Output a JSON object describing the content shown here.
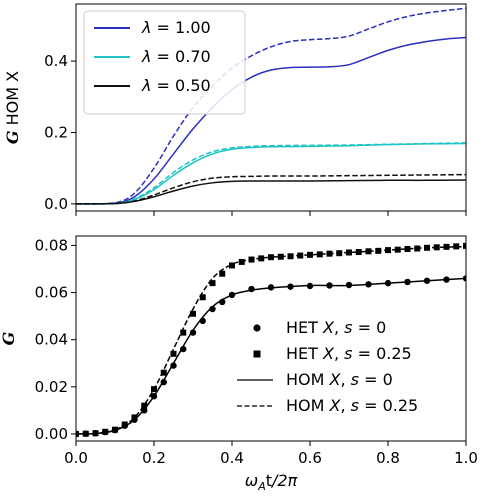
{
  "chart_data": [
    {
      "type": "line",
      "ylabel": "G HOM X",
      "ylim": [
        -0.02,
        0.56
      ],
      "xlim": [
        0.0,
        1.0
      ],
      "yticks": [
        0.0,
        0.2,
        0.4
      ],
      "ytick_labels": [
        "0.0",
        "0.2",
        "0.4"
      ],
      "show_x_tick_labels": false,
      "legend_position": "top-left",
      "legend": [
        {
          "label": "λ = 1.00",
          "color": "#2a2fbf"
        },
        {
          "label": "λ = 0.70",
          "color": "#1ec4c4"
        },
        {
          "label": "λ = 0.50",
          "color": "#111111"
        }
      ],
      "series": [
        {
          "lambda": "1.00",
          "style": "solid",
          "color": "#2a2fbf",
          "x": [
            0.0,
            0.1,
            0.15,
            0.2,
            0.25,
            0.3,
            0.35,
            0.4,
            0.45,
            0.5,
            0.55,
            0.6,
            0.65,
            0.7,
            0.75,
            0.8,
            0.85,
            0.9,
            0.95,
            1.0
          ],
          "y": [
            0.0,
            0.002,
            0.02,
            0.07,
            0.14,
            0.21,
            0.27,
            0.32,
            0.355,
            0.375,
            0.382,
            0.383,
            0.384,
            0.39,
            0.41,
            0.43,
            0.445,
            0.455,
            0.462,
            0.466
          ]
        },
        {
          "lambda": "1.00",
          "style": "dashed",
          "color": "#2a2fbf",
          "x": [
            0.0,
            0.1,
            0.15,
            0.2,
            0.25,
            0.3,
            0.35,
            0.4,
            0.45,
            0.5,
            0.55,
            0.6,
            0.65,
            0.7,
            0.75,
            0.8,
            0.85,
            0.9,
            0.95,
            1.0
          ],
          "y": [
            0.0,
            0.003,
            0.03,
            0.1,
            0.19,
            0.27,
            0.33,
            0.38,
            0.415,
            0.44,
            0.455,
            0.46,
            0.463,
            0.47,
            0.49,
            0.51,
            0.525,
            0.535,
            0.542,
            0.548
          ]
        },
        {
          "lambda": "0.70",
          "style": "solid",
          "color": "#1ec4c4",
          "x": [
            0.0,
            0.1,
            0.15,
            0.2,
            0.25,
            0.3,
            0.35,
            0.4,
            0.45,
            0.5,
            0.6,
            0.7,
            0.8,
            0.9,
            1.0
          ],
          "y": [
            0.0,
            0.001,
            0.012,
            0.04,
            0.08,
            0.115,
            0.14,
            0.153,
            0.158,
            0.16,
            0.161,
            0.163,
            0.166,
            0.168,
            0.169
          ]
        },
        {
          "lambda": "0.70",
          "style": "dashed",
          "color": "#1ec4c4",
          "x": [
            0.0,
            0.1,
            0.15,
            0.2,
            0.25,
            0.3,
            0.35,
            0.4,
            0.45,
            0.5,
            0.6,
            0.7,
            0.8,
            0.9,
            1.0
          ],
          "y": [
            0.0,
            0.001,
            0.014,
            0.045,
            0.088,
            0.123,
            0.146,
            0.157,
            0.161,
            0.163,
            0.164,
            0.165,
            0.167,
            0.169,
            0.171
          ]
        },
        {
          "lambda": "0.50",
          "style": "solid",
          "color": "#111111",
          "x": [
            0.0,
            0.1,
            0.15,
            0.2,
            0.25,
            0.3,
            0.35,
            0.4,
            0.45,
            0.5,
            0.6,
            0.7,
            0.8,
            0.9,
            1.0
          ],
          "y": [
            0.0,
            0.001,
            0.007,
            0.02,
            0.036,
            0.05,
            0.059,
            0.063,
            0.064,
            0.064,
            0.064,
            0.065,
            0.066,
            0.066,
            0.067
          ]
        },
        {
          "lambda": "0.50",
          "style": "dashed",
          "color": "#111111",
          "x": [
            0.0,
            0.1,
            0.15,
            0.2,
            0.25,
            0.3,
            0.35,
            0.4,
            0.45,
            0.5,
            0.6,
            0.7,
            0.8,
            0.9,
            1.0
          ],
          "y": [
            0.0,
            0.001,
            0.008,
            0.025,
            0.045,
            0.062,
            0.072,
            0.076,
            0.077,
            0.078,
            0.078,
            0.079,
            0.08,
            0.081,
            0.082
          ]
        }
      ]
    },
    {
      "type": "line",
      "ylabel": "G",
      "xlabel": "ω_A t/2π",
      "xlim": [
        0.0,
        1.0
      ],
      "ylim": [
        -0.003,
        0.084
      ],
      "xticks": [
        0.0,
        0.2,
        0.4,
        0.6,
        0.8,
        1.0
      ],
      "xtick_labels": [
        "0.0",
        "0.2",
        "0.4",
        "0.6",
        "0.8",
        "1.0"
      ],
      "yticks": [
        0.0,
        0.02,
        0.04,
        0.06,
        0.08
      ],
      "ytick_labels": [
        "0.00",
        "0.02",
        "0.04",
        "0.06",
        "0.08"
      ],
      "legend_position": "bottom-right",
      "legend": [
        {
          "label": "HET X, s = 0",
          "marker": "circle"
        },
        {
          "label": "HET X, s = 0.25",
          "marker": "square"
        },
        {
          "label": "HOM X, s = 0",
          "line": "solid"
        },
        {
          "label": "HOM X, s = 0.25",
          "line": "dashed"
        }
      ],
      "series": [
        {
          "name": "HOM X, s = 0",
          "style": "solid",
          "color": "#000000",
          "x": [
            0.0,
            0.05,
            0.1,
            0.15,
            0.2,
            0.25,
            0.3,
            0.35,
            0.4,
            0.45,
            0.5,
            0.6,
            0.7,
            0.8,
            0.9,
            1.0
          ],
          "y": [
            0.0,
            0.0002,
            0.0015,
            0.006,
            0.016,
            0.03,
            0.044,
            0.054,
            0.059,
            0.061,
            0.062,
            0.063,
            0.063,
            0.064,
            0.065,
            0.066
          ]
        },
        {
          "name": "HOM X, s = 0.25",
          "style": "dashed",
          "color": "#000000",
          "x": [
            0.0,
            0.05,
            0.1,
            0.15,
            0.2,
            0.25,
            0.3,
            0.35,
            0.4,
            0.45,
            0.5,
            0.6,
            0.7,
            0.8,
            0.9,
            1.0
          ],
          "y": [
            0.0,
            0.0002,
            0.0017,
            0.007,
            0.019,
            0.036,
            0.053,
            0.066,
            0.072,
            0.074,
            0.075,
            0.076,
            0.077,
            0.078,
            0.079,
            0.0795
          ]
        },
        {
          "name": "HET X, s = 0",
          "marker": "circle",
          "color": "#000000",
          "x": [
            0.0,
            0.025,
            0.05,
            0.075,
            0.1,
            0.125,
            0.15,
            0.175,
            0.2,
            0.225,
            0.25,
            0.275,
            0.3,
            0.325,
            0.35,
            0.375,
            0.4,
            0.45,
            0.5,
            0.55,
            0.6,
            0.65,
            0.7,
            0.75,
            0.8,
            0.85,
            0.9,
            0.95,
            1.0
          ],
          "y": [
            0.0,
            0.0001,
            0.0003,
            0.0008,
            0.0016,
            0.0035,
            0.006,
            0.01,
            0.016,
            0.022,
            0.029,
            0.036,
            0.043,
            0.048,
            0.053,
            0.056,
            0.059,
            0.0615,
            0.0622,
            0.0625,
            0.0628,
            0.063,
            0.0632,
            0.0635,
            0.064,
            0.0645,
            0.065,
            0.0655,
            0.066
          ]
        },
        {
          "name": "HET X, s = 0.25",
          "marker": "square",
          "color": "#000000",
          "x": [
            0.0,
            0.025,
            0.05,
            0.075,
            0.1,
            0.125,
            0.15,
            0.175,
            0.2,
            0.225,
            0.25,
            0.275,
            0.3,
            0.325,
            0.35,
            0.375,
            0.4,
            0.425,
            0.45,
            0.475,
            0.5,
            0.525,
            0.55,
            0.575,
            0.6,
            0.625,
            0.65,
            0.675,
            0.7,
            0.725,
            0.75,
            0.775,
            0.8,
            0.825,
            0.85,
            0.875,
            0.9,
            0.925,
            0.95,
            0.975,
            1.0
          ],
          "y": [
            0.0,
            0.0001,
            0.0003,
            0.0009,
            0.0018,
            0.004,
            0.007,
            0.012,
            0.019,
            0.026,
            0.034,
            0.043,
            0.051,
            0.058,
            0.064,
            0.068,
            0.0715,
            0.073,
            0.074,
            0.0745,
            0.075,
            0.0752,
            0.0754,
            0.0757,
            0.076,
            0.0762,
            0.0765,
            0.0767,
            0.077,
            0.0772,
            0.0775,
            0.0777,
            0.078,
            0.0782,
            0.0785,
            0.0787,
            0.079,
            0.0792,
            0.0794,
            0.0796,
            0.0798
          ]
        }
      ]
    }
  ]
}
